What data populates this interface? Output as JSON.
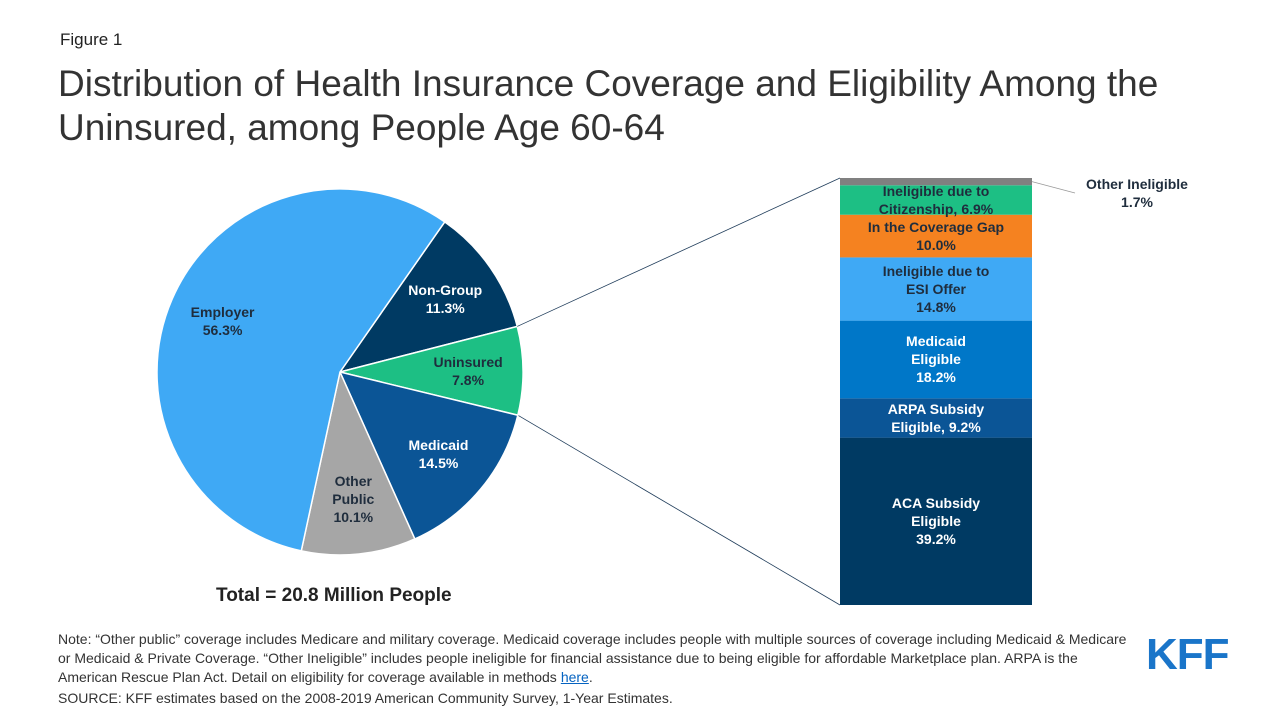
{
  "figure_label": "Figure 1",
  "title": "Distribution of Health Insurance Coverage and Eligibility Among the Uninsured, among People Age 60-64",
  "chart_data": [
    {
      "type": "pie",
      "caption": "Total = 20.8 Million  People",
      "categories": [
        "Non-Group",
        "Uninsured",
        "Medicaid",
        "Other Public",
        "Employer"
      ],
      "values": [
        11.3,
        7.8,
        14.5,
        10.1,
        56.3
      ],
      "value_labels": [
        "11.3%",
        "7.8%",
        "14.5%",
        "10.1%",
        "56.3%"
      ],
      "colors": [
        "#003a63",
        "#1dbf84",
        "#0b5596",
        "#a6a6a6",
        "#3fa9f5"
      ],
      "label_colors": [
        "#ffffff",
        "#1f2d3d",
        "#ffffff",
        "#1f2d3d",
        "#1f2d3d"
      ]
    },
    {
      "type": "stacked-bar",
      "categories": [
        "ACA Subsidy Eligible",
        "ARPA Subsidy Eligible,",
        "Medicaid Eligible",
        "Ineligible due to ESI Offer",
        "In the Coverage Gap",
        "Ineligible due to Citizenship,",
        "Other Ineligible"
      ],
      "values": [
        39.2,
        9.2,
        18.2,
        14.8,
        10.0,
        6.9,
        1.7
      ],
      "value_labels": [
        "39.2%",
        "9.2%",
        "18.2%",
        "14.8%",
        "10.0%",
        "6.9%",
        "1.7%"
      ],
      "colors": [
        "#003a63",
        "#0b5596",
        "#0077c8",
        "#3fa9f5",
        "#f58220",
        "#1dbf84",
        "#808080"
      ],
      "label_colors": [
        "#ffffff",
        "#ffffff",
        "#ffffff",
        "#1f2d3d",
        "#1f2d3d",
        "#1f2d3d",
        "#1f2d3d"
      ],
      "ylim": [
        0,
        100
      ]
    }
  ],
  "note": {
    "text": "Note: “Other public” coverage includes Medicare and military coverage. Medicaid coverage includes people with multiple sources of coverage including Medicaid & Medicare or Medicaid & Private Coverage. “Other Ineligible” includes people ineligible for financial assistance due to being eligible for affordable Marketplace plan. ARPA is the American Rescue Plan Act. Detail on eligibility for coverage available in methods",
    "link": "here",
    "end": "."
  },
  "source": "SOURCE: KFF estimates based on the 2008-2019 American Community Survey, 1-Year Estimates.",
  "logo": "KFF"
}
